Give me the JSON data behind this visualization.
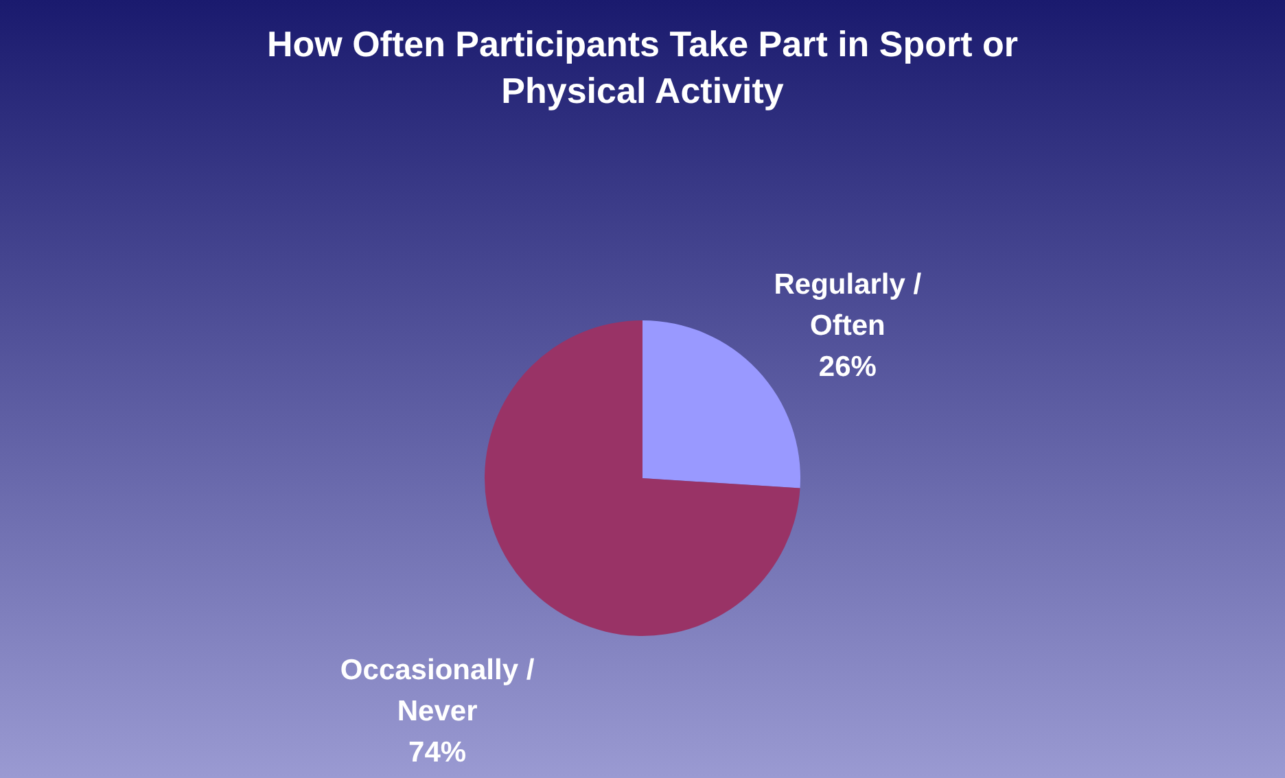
{
  "chart_data": {
    "type": "pie",
    "title": "How Often Participants Take Part in Sport or Physical Activity",
    "categories": [
      "Regularly / Often",
      "Occasionally / Never"
    ],
    "values": [
      26,
      74
    ],
    "colors": [
      "#9999ff",
      "#993366"
    ],
    "value_labels": [
      "26%",
      "74%"
    ],
    "legend": false
  }
}
